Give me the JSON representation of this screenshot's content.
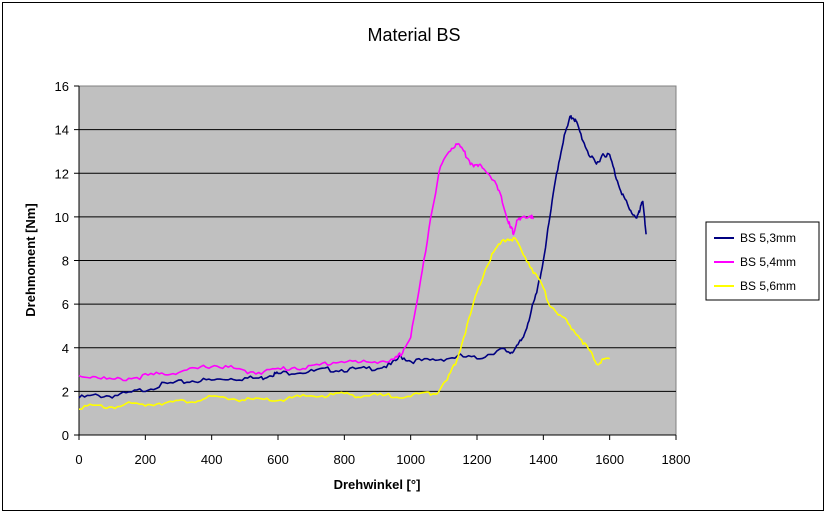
{
  "chart_data": {
    "type": "line",
    "title": "Material BS",
    "xlabel": "Drehwinkel [°]",
    "ylabel": "Drehmoment [Nm]",
    "xlim": [
      0,
      1800
    ],
    "ylim": [
      0,
      16
    ],
    "xticks": [
      0,
      200,
      400,
      600,
      800,
      1000,
      1200,
      1400,
      1600,
      1800
    ],
    "yticks": [
      0,
      2,
      4,
      6,
      8,
      10,
      12,
      14,
      16
    ],
    "grid": "horizontal",
    "legend_position": "right",
    "plot_background": "#c0c0c0",
    "series": [
      {
        "name": "BS 5,3mm",
        "color": "#000080",
        "points": [
          [
            0,
            1.7
          ],
          [
            50,
            1.8
          ],
          [
            100,
            1.8
          ],
          [
            150,
            1.9
          ],
          [
            200,
            2.1
          ],
          [
            250,
            2.3
          ],
          [
            300,
            2.4
          ],
          [
            350,
            2.5
          ],
          [
            400,
            2.5
          ],
          [
            450,
            2.6
          ],
          [
            500,
            2.6
          ],
          [
            550,
            2.6
          ],
          [
            580,
            2.8
          ],
          [
            600,
            2.8
          ],
          [
            650,
            2.9
          ],
          [
            700,
            2.9
          ],
          [
            750,
            3.0
          ],
          [
            800,
            3.0
          ],
          [
            850,
            3.0
          ],
          [
            900,
            3.1
          ],
          [
            940,
            3.2
          ],
          [
            970,
            3.6
          ],
          [
            1000,
            3.4
          ],
          [
            1050,
            3.4
          ],
          [
            1100,
            3.5
          ],
          [
            1150,
            3.6
          ],
          [
            1200,
            3.5
          ],
          [
            1250,
            3.8
          ],
          [
            1280,
            3.9
          ],
          [
            1300,
            3.8
          ],
          [
            1320,
            4.0
          ],
          [
            1340,
            4.5
          ],
          [
            1360,
            5.5
          ],
          [
            1380,
            6.5
          ],
          [
            1400,
            8.0
          ],
          [
            1420,
            10.0
          ],
          [
            1440,
            12.0
          ],
          [
            1460,
            13.5
          ],
          [
            1480,
            14.5
          ],
          [
            1490,
            14.6
          ],
          [
            1500,
            14.3
          ],
          [
            1520,
            13.5
          ],
          [
            1540,
            12.8
          ],
          [
            1560,
            12.4
          ],
          [
            1580,
            12.9
          ],
          [
            1600,
            12.8
          ],
          [
            1620,
            11.8
          ],
          [
            1640,
            11.0
          ],
          [
            1660,
            10.3
          ],
          [
            1680,
            10.0
          ],
          [
            1690,
            10.2
          ],
          [
            1700,
            10.8
          ],
          [
            1710,
            9.2
          ]
        ]
      },
      {
        "name": "BS 5,4mm",
        "color": "#ff00ff",
        "points": [
          [
            0,
            2.7
          ],
          [
            50,
            2.7
          ],
          [
            100,
            2.5
          ],
          [
            150,
            2.6
          ],
          [
            200,
            2.7
          ],
          [
            250,
            2.8
          ],
          [
            300,
            2.9
          ],
          [
            350,
            3.0
          ],
          [
            400,
            3.2
          ],
          [
            450,
            3.1
          ],
          [
            500,
            2.9
          ],
          [
            550,
            2.9
          ],
          [
            600,
            3.0
          ],
          [
            650,
            3.1
          ],
          [
            700,
            3.1
          ],
          [
            750,
            3.3
          ],
          [
            800,
            3.4
          ],
          [
            850,
            3.3
          ],
          [
            900,
            3.4
          ],
          [
            950,
            3.4
          ],
          [
            970,
            3.7
          ],
          [
            1000,
            4.5
          ],
          [
            1030,
            7.0
          ],
          [
            1060,
            10.0
          ],
          [
            1090,
            12.3
          ],
          [
            1120,
            13.1
          ],
          [
            1140,
            13.4
          ],
          [
            1160,
            13.0
          ],
          [
            1180,
            12.5
          ],
          [
            1200,
            12.3
          ],
          [
            1220,
            12.3
          ],
          [
            1250,
            11.7
          ],
          [
            1270,
            11.0
          ],
          [
            1290,
            10.0
          ],
          [
            1300,
            9.5
          ],
          [
            1310,
            9.3
          ],
          [
            1320,
            9.8
          ],
          [
            1340,
            9.9
          ],
          [
            1360,
            10.1
          ],
          [
            1370,
            9.9
          ]
        ]
      },
      {
        "name": "BS 5,6mm",
        "color": "#ffff00",
        "points": [
          [
            0,
            1.3
          ],
          [
            50,
            1.3
          ],
          [
            100,
            1.3
          ],
          [
            150,
            1.4
          ],
          [
            200,
            1.4
          ],
          [
            250,
            1.5
          ],
          [
            300,
            1.5
          ],
          [
            350,
            1.6
          ],
          [
            400,
            1.7
          ],
          [
            450,
            1.7
          ],
          [
            500,
            1.6
          ],
          [
            550,
            1.6
          ],
          [
            600,
            1.6
          ],
          [
            650,
            1.7
          ],
          [
            700,
            1.8
          ],
          [
            750,
            1.8
          ],
          [
            800,
            1.9
          ],
          [
            850,
            1.8
          ],
          [
            900,
            1.8
          ],
          [
            950,
            1.8
          ],
          [
            1000,
            1.8
          ],
          [
            1050,
            1.9
          ],
          [
            1080,
            2.0
          ],
          [
            1110,
            2.5
          ],
          [
            1140,
            3.5
          ],
          [
            1170,
            5.0
          ],
          [
            1200,
            6.5
          ],
          [
            1230,
            7.8
          ],
          [
            1260,
            8.6
          ],
          [
            1290,
            9.0
          ],
          [
            1310,
            9.0
          ],
          [
            1330,
            8.6
          ],
          [
            1360,
            7.8
          ],
          [
            1390,
            7.0
          ],
          [
            1420,
            6.0
          ],
          [
            1450,
            5.5
          ],
          [
            1480,
            5.0
          ],
          [
            1510,
            4.5
          ],
          [
            1540,
            3.8
          ],
          [
            1560,
            3.3
          ],
          [
            1580,
            3.4
          ],
          [
            1600,
            3.5
          ]
        ]
      }
    ]
  }
}
